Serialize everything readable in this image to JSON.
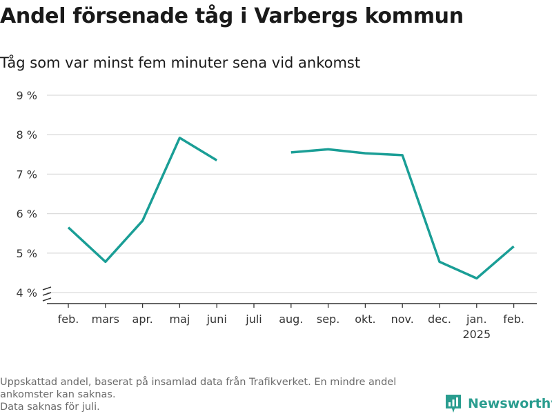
{
  "title": "Andel försenade tåg i Varbergs kommun",
  "subtitle": "Tåg som var minst fem minuter sena vid ankomst",
  "notes": [
    "Uppskattad andel, baserat på insamlad data från Trafikverket. En mindre andel ankomster kan saknas.",
    "Data saknas för juli."
  ],
  "brand": {
    "name": "Newsworthy",
    "icon": "newsworthy-logo-icon",
    "color": "#2a9d8f"
  },
  "chart_data": {
    "type": "line",
    "title": "Andel försenade tåg i Varbergs kommun",
    "subtitle": "Tåg som var minst fem minuter sena vid ankomst",
    "xlabel": "",
    "ylabel": "",
    "categories": [
      "feb.",
      "mars",
      "apr.",
      "maj",
      "juni",
      "juli",
      "aug.",
      "sep.",
      "okt.",
      "nov.",
      "dec.",
      "jan.",
      "feb."
    ],
    "category_sublabels": [
      "",
      "",
      "",
      "",
      "",
      "",
      "",
      "",
      "",
      "",
      "",
      "2025",
      ""
    ],
    "series": [
      {
        "values": [
          5.65,
          4.78,
          5.82,
          7.92,
          7.35,
          null,
          7.55,
          7.63,
          7.53,
          7.48,
          4.78,
          4.36,
          5.17
        ],
        "color": "#1a9e96"
      }
    ],
    "ylim": [
      4,
      9
    ],
    "yticks": [
      4,
      5,
      6,
      7,
      8,
      9
    ],
    "ytick_suffix": " %",
    "axis_break": true,
    "grid": true,
    "legend": "none"
  }
}
